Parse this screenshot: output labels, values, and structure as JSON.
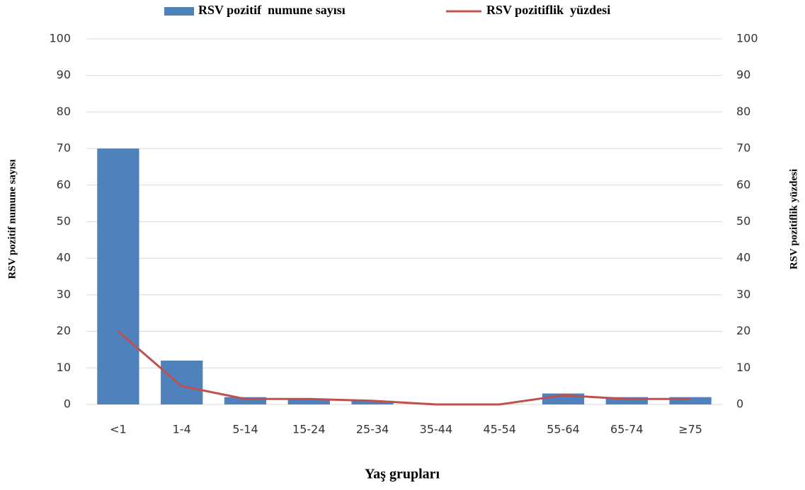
{
  "chart_data": {
    "type": "bar",
    "x_label": "Yaş grupları",
    "y_label": "RSV pozitif numune sayısı",
    "y2_label": "RSV pozitiflik  yüzdesi",
    "categories": [
      "<1",
      "1-4",
      "5-14",
      "15-24",
      "25-34",
      "35-44",
      "45-54",
      "55-64",
      "65-74",
      "≥75"
    ],
    "series": [
      {
        "name": "RSV pozitif  numune sayısı",
        "type": "bar",
        "color": "#4f81bd",
        "values": [
          70,
          12,
          2,
          1.5,
          1,
          0,
          0,
          3,
          2,
          2
        ]
      },
      {
        "name": "RSV pozitiflik  yüzdesi",
        "type": "line",
        "axis": "y2",
        "color": "#c0504d",
        "values": [
          20,
          5,
          1.5,
          1.5,
          1,
          0,
          0,
          2.5,
          1.5,
          1.5
        ]
      }
    ],
    "ylim": [
      0,
      100
    ],
    "yticks": [
      0,
      10,
      20,
      30,
      40,
      50,
      60,
      70,
      80,
      90,
      100
    ],
    "y2lim": [
      0,
      100
    ],
    "y2ticks": [
      0,
      10,
      20,
      30,
      40,
      50,
      60,
      70,
      80,
      90,
      100
    ],
    "grid": true
  }
}
